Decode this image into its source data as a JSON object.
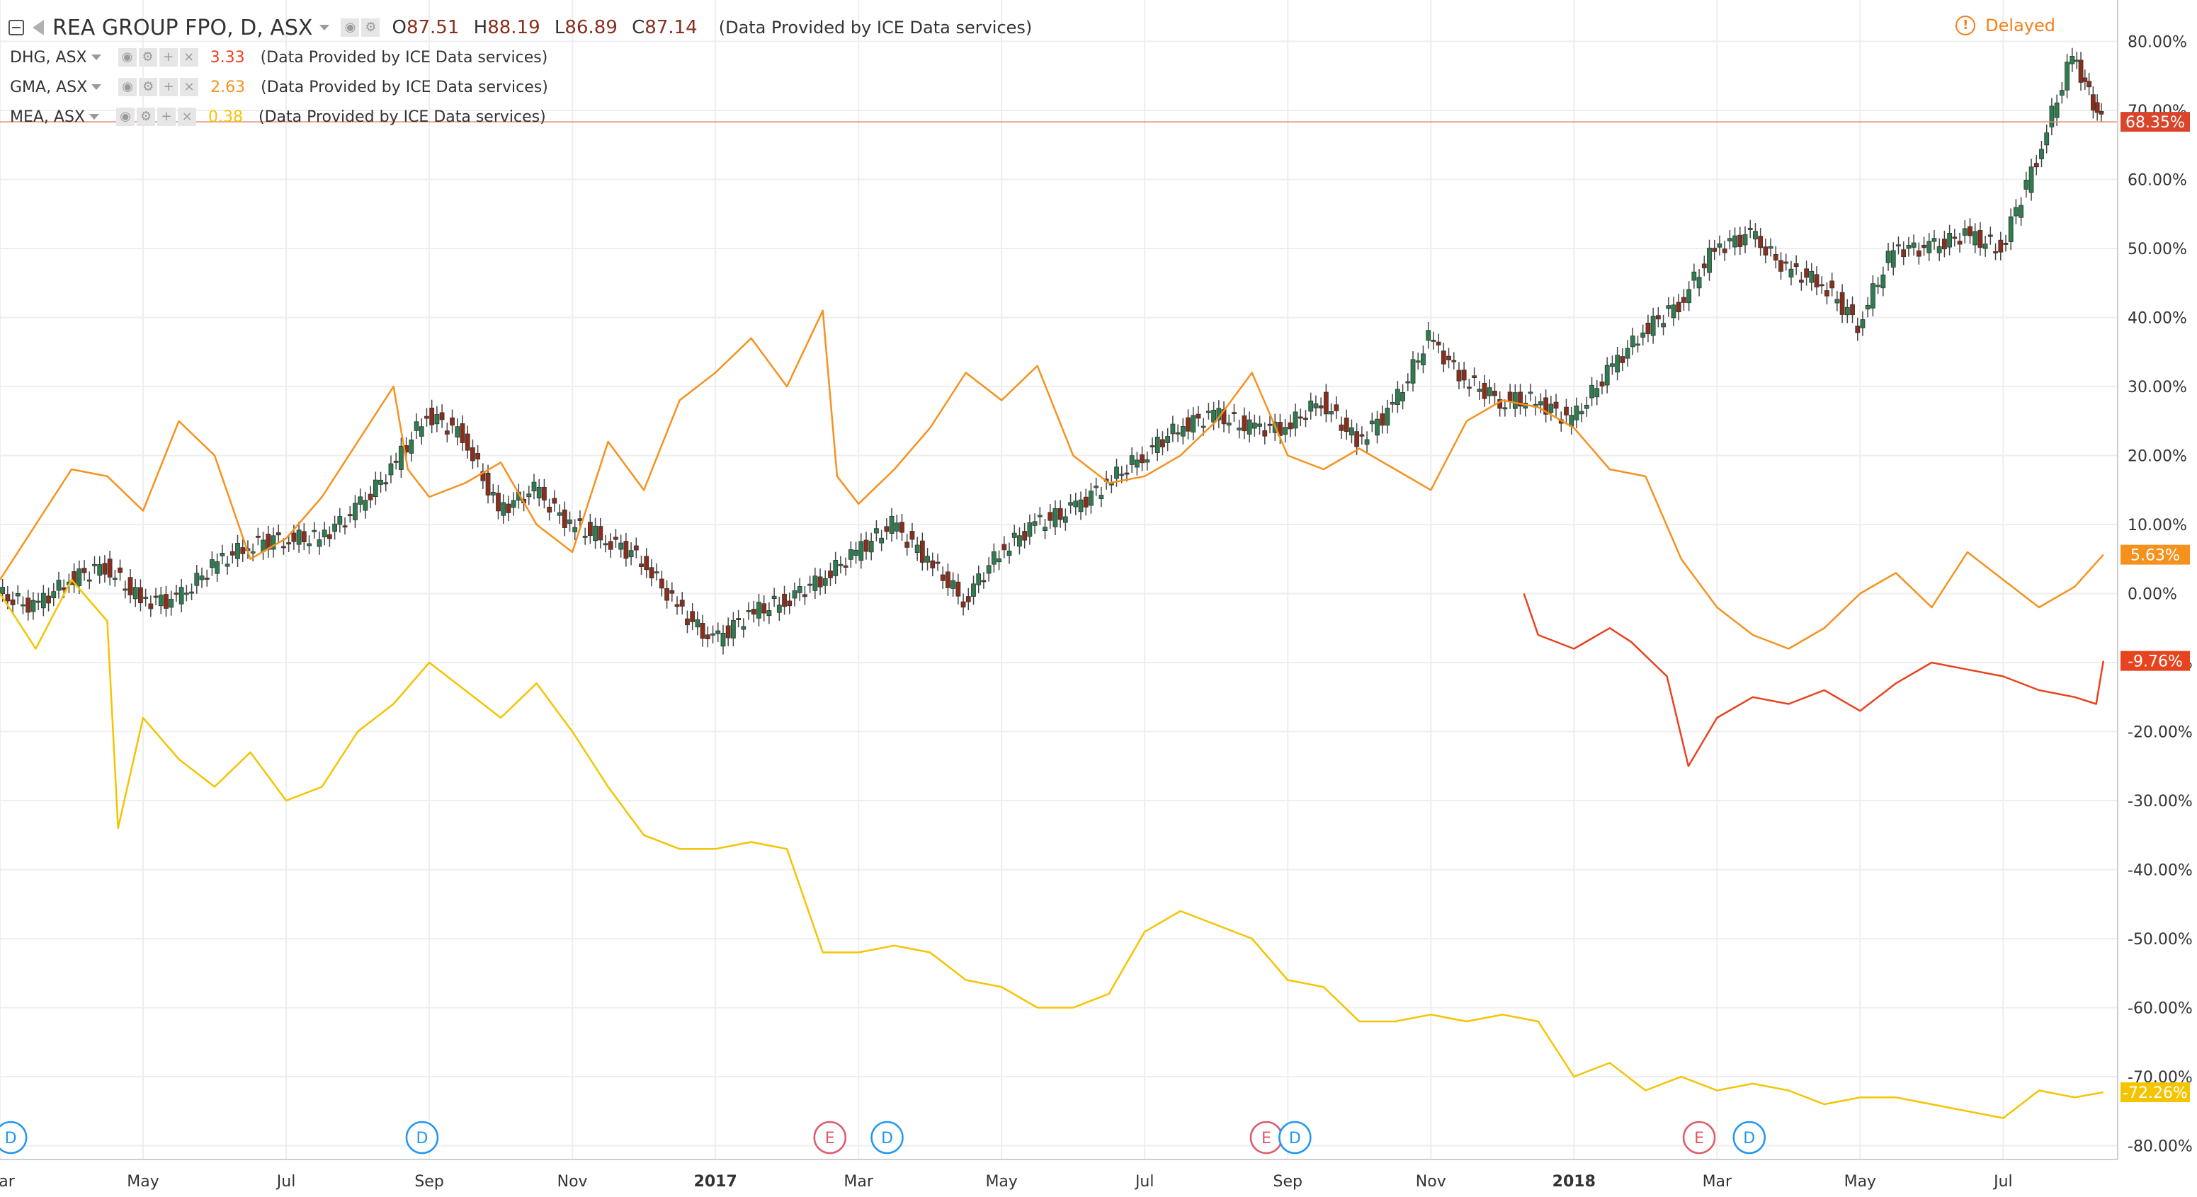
{
  "header": {
    "main_symbol": "REA GROUP FPO, D, ASX",
    "ohlc": {
      "o_label": "O",
      "o": "87.51",
      "h_label": "H",
      "h": "88.19",
      "l_label": "L",
      "l": "86.89",
      "c_label": "C",
      "c": "87.14"
    },
    "provider": "(Data Provided by ICE Data services)",
    "delayed": "Delayed",
    "compare": [
      {
        "symbol": "DHG, ASX",
        "value": "3.33",
        "color": "#e8431f"
      },
      {
        "symbol": "GMA, ASX",
        "value": "2.63",
        "color": "#f5921e"
      },
      {
        "symbol": "MEA, ASX",
        "value": "0.38",
        "color": "#f5c400"
      }
    ]
  },
  "chart_data": {
    "type": "line",
    "x_tick_labels": [
      "Mar",
      "May",
      "Jul",
      "Sep",
      "Nov",
      "2017",
      "Mar",
      "May",
      "Jul",
      "Sep",
      "Nov",
      "2018",
      "Mar",
      "May",
      "Jul"
    ],
    "y_tick_labels": [
      "80.00%",
      "70.00%",
      "60.00%",
      "50.00%",
      "40.00%",
      "30.00%",
      "20.00%",
      "10.00%",
      "0.00%",
      "-10.00%",
      "-20.00%",
      "-30.00%",
      "-40.00%",
      "-50.00%",
      "-60.00%",
      "-70.00%",
      "-80.00%"
    ],
    "ylim": [
      -82,
      86
    ],
    "xlim": [
      0,
      29.6
    ],
    "grid": true,
    "series": [
      {
        "name": "REA GROUP FPO, D, ASX",
        "style": "candlestick",
        "color_up": "#2e7d4f",
        "color_down": "#8b2e1c",
        "last_label": "68.35%",
        "x": [
          0,
          0.5,
          1,
          1.5,
          2,
          2.5,
          3,
          3.5,
          4,
          4.5,
          5,
          5.5,
          6,
          6.5,
          7,
          7.5,
          8,
          8.5,
          9,
          9.5,
          10,
          10.5,
          11,
          11.5,
          12,
          12.5,
          13,
          13.5,
          14,
          14.5,
          15,
          15.5,
          16,
          16.5,
          17,
          17.5,
          18,
          18.5,
          19,
          19.5,
          20,
          20.5,
          21,
          21.5,
          22,
          22.5,
          23,
          23.5,
          24,
          24.5,
          25,
          25.5,
          26,
          26.5,
          27,
          27.5,
          28,
          28.5,
          29,
          29.4
        ],
        "y": [
          0,
          -2,
          2,
          4,
          -1,
          -1,
          4,
          7,
          8,
          8,
          12,
          18,
          26,
          23,
          12,
          15,
          10,
          8,
          5,
          -2,
          -7,
          -3,
          -1,
          2,
          6,
          10,
          5,
          -1,
          6,
          10,
          12,
          16,
          20,
          24,
          26,
          24,
          24,
          28,
          22,
          27,
          37,
          31,
          28,
          28,
          25,
          32,
          38,
          42,
          50,
          52,
          47,
          45,
          39,
          50,
          50,
          52,
          50,
          63,
          78,
          68.35
        ]
      },
      {
        "name": "GMA, ASX",
        "style": "line",
        "color": "#f5921e",
        "last_label": "5.63%",
        "x": [
          0,
          0.5,
          1,
          1.5,
          2,
          2.5,
          3,
          3.5,
          4,
          4.5,
          5,
          5.5,
          5.7,
          6,
          6.5,
          7,
          7.5,
          8,
          8.5,
          9,
          9.5,
          10,
          10.5,
          11,
          11.5,
          11.7,
          12,
          12.5,
          13,
          13.5,
          14,
          14.5,
          15,
          15.5,
          16,
          16.5,
          17,
          17.5,
          18,
          18.5,
          19,
          19.5,
          20,
          20.5,
          21,
          21.5,
          22,
          22.5,
          23,
          23.5,
          24,
          24.5,
          25,
          25.5,
          26,
          26.5,
          27,
          27.5,
          28,
          28.5,
          29,
          29.4
        ],
        "y": [
          2,
          10,
          18,
          17,
          12,
          25,
          20,
          5,
          8,
          14,
          22,
          30,
          18,
          14,
          16,
          19,
          10,
          6,
          22,
          15,
          28,
          32,
          37,
          30,
          41,
          17,
          13,
          18,
          24,
          32,
          28,
          33,
          20,
          16,
          17,
          20,
          25,
          32,
          20,
          18,
          21,
          18,
          15,
          25,
          28,
          27,
          24,
          18,
          17,
          5,
          -2,
          -6,
          -8,
          -5,
          0,
          3,
          -2,
          6,
          2,
          -2,
          1,
          5.63
        ]
      },
      {
        "name": "DHG, ASX",
        "style": "line",
        "color": "#e8431f",
        "last_label": "-9.76%",
        "x": [
          21.3,
          21.5,
          22,
          22.5,
          22.8,
          23.3,
          23.6,
          24,
          24.5,
          25,
          25.5,
          26,
          26.5,
          27,
          27.5,
          28,
          28.5,
          29,
          29.3,
          29.4
        ],
        "y": [
          0,
          -6,
          -8,
          -5,
          -7,
          -12,
          -25,
          -18,
          -15,
          -16,
          -14,
          -17,
          -13,
          -10,
          -11,
          -12,
          -14,
          -15,
          -16,
          -9.76
        ]
      },
      {
        "name": "MEA, ASX",
        "style": "line",
        "color": "#f5c400",
        "last_label": "-72.26%",
        "x": [
          0,
          0.5,
          1,
          1.5,
          1.65,
          2,
          2.5,
          3,
          3.5,
          4,
          4.5,
          5,
          5.5,
          6,
          6.5,
          7,
          7.5,
          8,
          8.5,
          9,
          9.5,
          10,
          10.5,
          11,
          11.5,
          12,
          12.5,
          13,
          13.5,
          14,
          14.5,
          15,
          15.5,
          16,
          16.5,
          17,
          17.5,
          18,
          18.5,
          19,
          19.5,
          20,
          20.5,
          21,
          21.5,
          22,
          22.5,
          23,
          23.5,
          24,
          24.5,
          25,
          25.5,
          26,
          26.5,
          27,
          27.5,
          28,
          28.5,
          29,
          29.4
        ],
        "y": [
          0,
          -8,
          2,
          -4,
          -34,
          -18,
          -24,
          -28,
          -23,
          -30,
          -28,
          -20,
          -16,
          -10,
          -14,
          -18,
          -13,
          -20,
          -28,
          -35,
          -37,
          -37,
          -36,
          -37,
          -52,
          -52,
          -51,
          -52,
          -56,
          -57,
          -60,
          -60,
          -58,
          -49,
          -46,
          -48,
          -50,
          -56,
          -57,
          -62,
          -62,
          -61,
          -62,
          -61,
          -62,
          -70,
          -68,
          -72,
          -70,
          -72,
          -71,
          -72,
          -74,
          -73,
          -73,
          -74,
          -75,
          -76,
          -72,
          -73,
          -72.26
        ]
      }
    ],
    "events": [
      {
        "label": "D",
        "x": 0.15,
        "kind": "dividend"
      },
      {
        "label": "D",
        "x": 5.9,
        "kind": "dividend"
      },
      {
        "label": "E",
        "x": 11.6,
        "kind": "earnings"
      },
      {
        "label": "D",
        "x": 12.4,
        "kind": "dividend"
      },
      {
        "label": "E",
        "x": 17.7,
        "kind": "earnings"
      },
      {
        "label": "D",
        "x": 18.1,
        "kind": "dividend"
      },
      {
        "label": "E",
        "x": 23.75,
        "kind": "earnings"
      },
      {
        "label": "D",
        "x": 24.45,
        "kind": "dividend"
      }
    ]
  }
}
